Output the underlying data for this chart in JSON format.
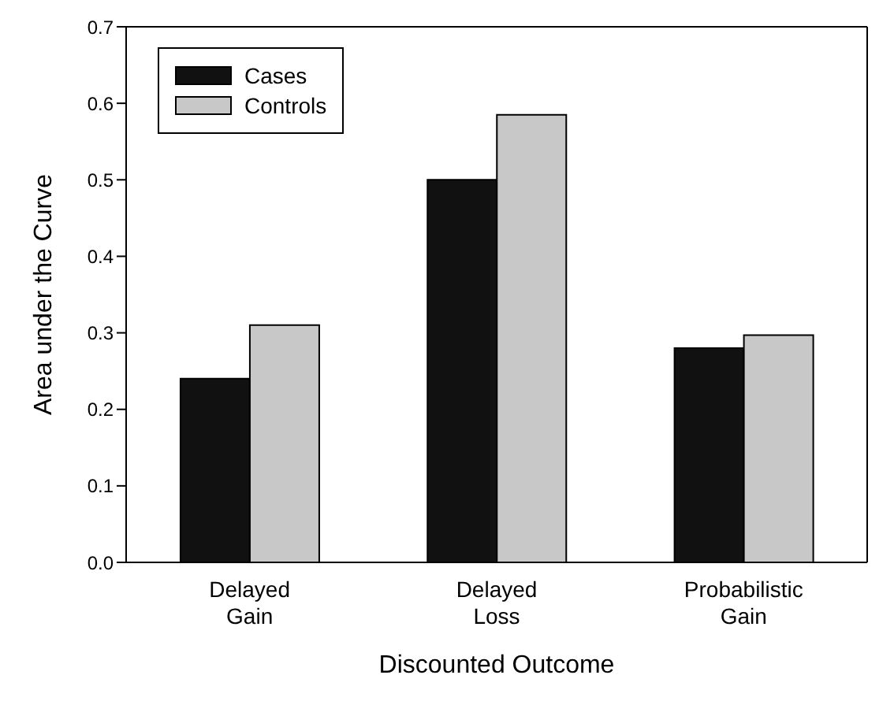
{
  "chart_data": {
    "type": "bar",
    "xlabel": "Discounted Outcome",
    "ylabel": "Area under the Curve",
    "categories": [
      "Delayed Gain",
      "Delayed Loss",
      "Probabilistic Gain"
    ],
    "series": [
      {
        "name": "Cases",
        "color": "#111111",
        "values": [
          0.24,
          0.5,
          0.28
        ]
      },
      {
        "name": "Controls",
        "color": "#c8c8c8",
        "values": [
          0.31,
          0.585,
          0.297
        ]
      }
    ],
    "ylim": [
      0,
      0.7
    ],
    "yticks": [
      {
        "value": 0,
        "label": "0.0"
      },
      0.1,
      0.2,
      0.3,
      0.4,
      0.5,
      0.6,
      0.7
    ],
    "grid": false,
    "legend": "top left"
  }
}
